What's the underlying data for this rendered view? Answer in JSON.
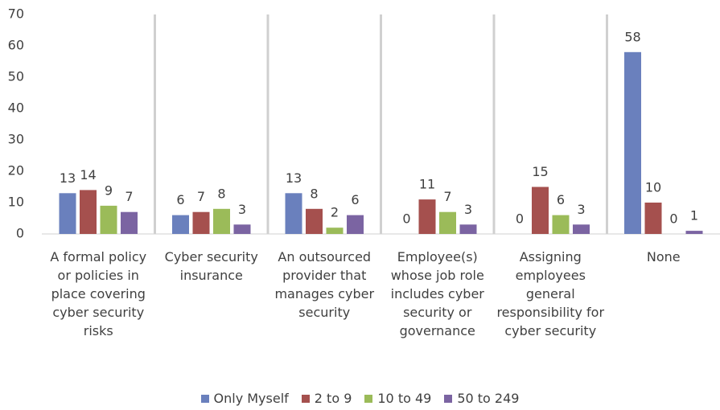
{
  "chart_data": {
    "type": "bar",
    "categories": [
      "A formal policy or policies in place covering cyber security risks",
      "Cyber security insurance",
      "An outsourced provider that manages cyber security",
      "Employee(s) whose job role includes cyber security or governance",
      "Assigning employees general responsibility for cyber security",
      "None"
    ],
    "series": [
      {
        "name": "Only Myself",
        "color": "#6a80bd",
        "values": [
          13,
          6,
          13,
          0,
          0,
          58
        ]
      },
      {
        "name": "2 to 9",
        "color": "#a5504e",
        "values": [
          14,
          7,
          8,
          11,
          15,
          10
        ]
      },
      {
        "name": "10 to 49",
        "color": "#9bbb59",
        "values": [
          9,
          8,
          2,
          7,
          6,
          0
        ]
      },
      {
        "name": "50 to 249",
        "color": "#7b64a2",
        "values": [
          7,
          3,
          6,
          3,
          3,
          1
        ]
      }
    ],
    "ylim": [
      0,
      70
    ],
    "yticks": [
      0,
      10,
      20,
      30,
      40,
      50,
      60,
      70
    ],
    "legend": "bottom"
  }
}
